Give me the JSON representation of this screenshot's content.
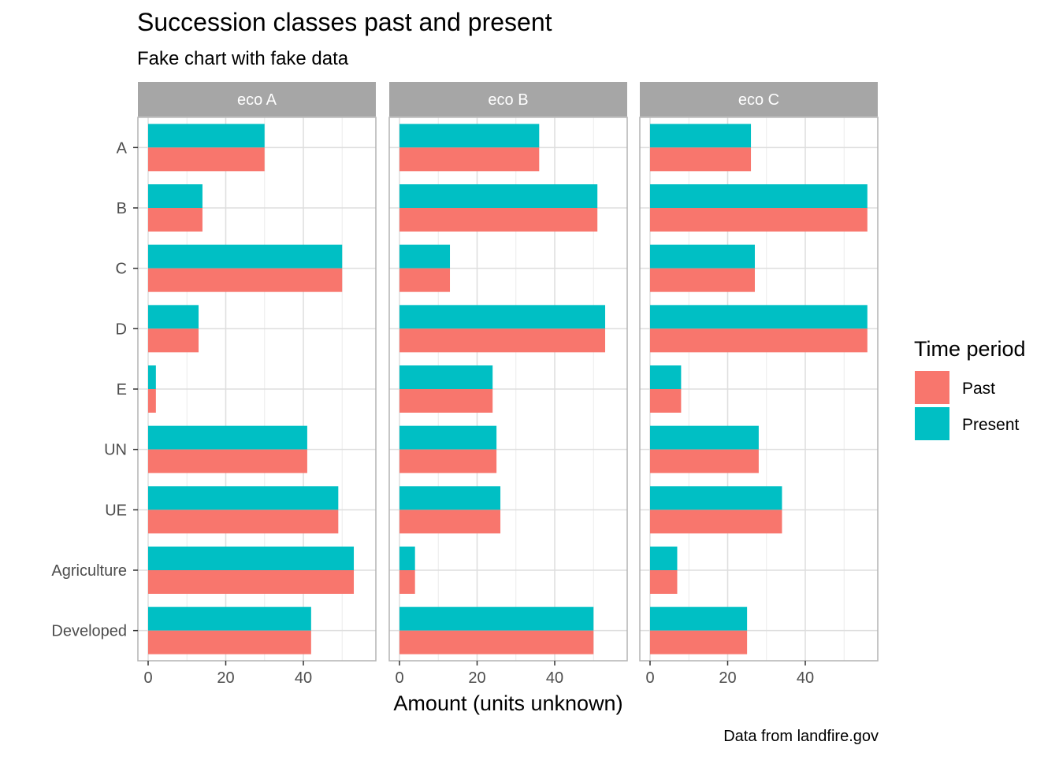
{
  "chart_data": {
    "type": "bar",
    "orientation": "horizontal",
    "title": "Succession classes past and present",
    "subtitle": "Fake chart with fake data",
    "xlabel": "Amount (units unknown)",
    "ylabel": "",
    "caption": "Data from landfire.gov",
    "xlim": [
      0,
      56
    ],
    "x_ticks": [
      0,
      20,
      40
    ],
    "grid": true,
    "legend": {
      "title": "Time period",
      "position": "right",
      "entries": [
        "Past",
        "Present"
      ]
    },
    "colors": {
      "Past": "#F8766D",
      "Present": "#00BFC4"
    },
    "categories": [
      "A",
      "B",
      "C",
      "D",
      "E",
      "UN",
      "UE",
      "Agriculture",
      "Developed"
    ],
    "panels": [
      {
        "title": "eco A",
        "series": [
          {
            "name": "Past",
            "values": [
              30,
              14,
              50,
              13,
              2,
              41,
              49,
              53,
              42
            ]
          },
          {
            "name": "Present",
            "values": [
              30,
              14,
              50,
              13,
              2,
              41,
              49,
              53,
              42
            ]
          }
        ]
      },
      {
        "title": "eco B",
        "series": [
          {
            "name": "Past",
            "values": [
              36,
              51,
              13,
              53,
              24,
              25,
              26,
              4,
              50
            ]
          },
          {
            "name": "Present",
            "values": [
              36,
              51,
              13,
              53,
              24,
              25,
              26,
              4,
              50
            ]
          }
        ]
      },
      {
        "title": "eco C",
        "series": [
          {
            "name": "Past",
            "values": [
              26,
              56,
              27,
              56,
              8,
              28,
              34,
              7,
              25
            ]
          },
          {
            "name": "Present",
            "values": [
              26,
              56,
              27,
              56,
              8,
              28,
              34,
              7,
              25
            ]
          }
        ]
      }
    ]
  }
}
